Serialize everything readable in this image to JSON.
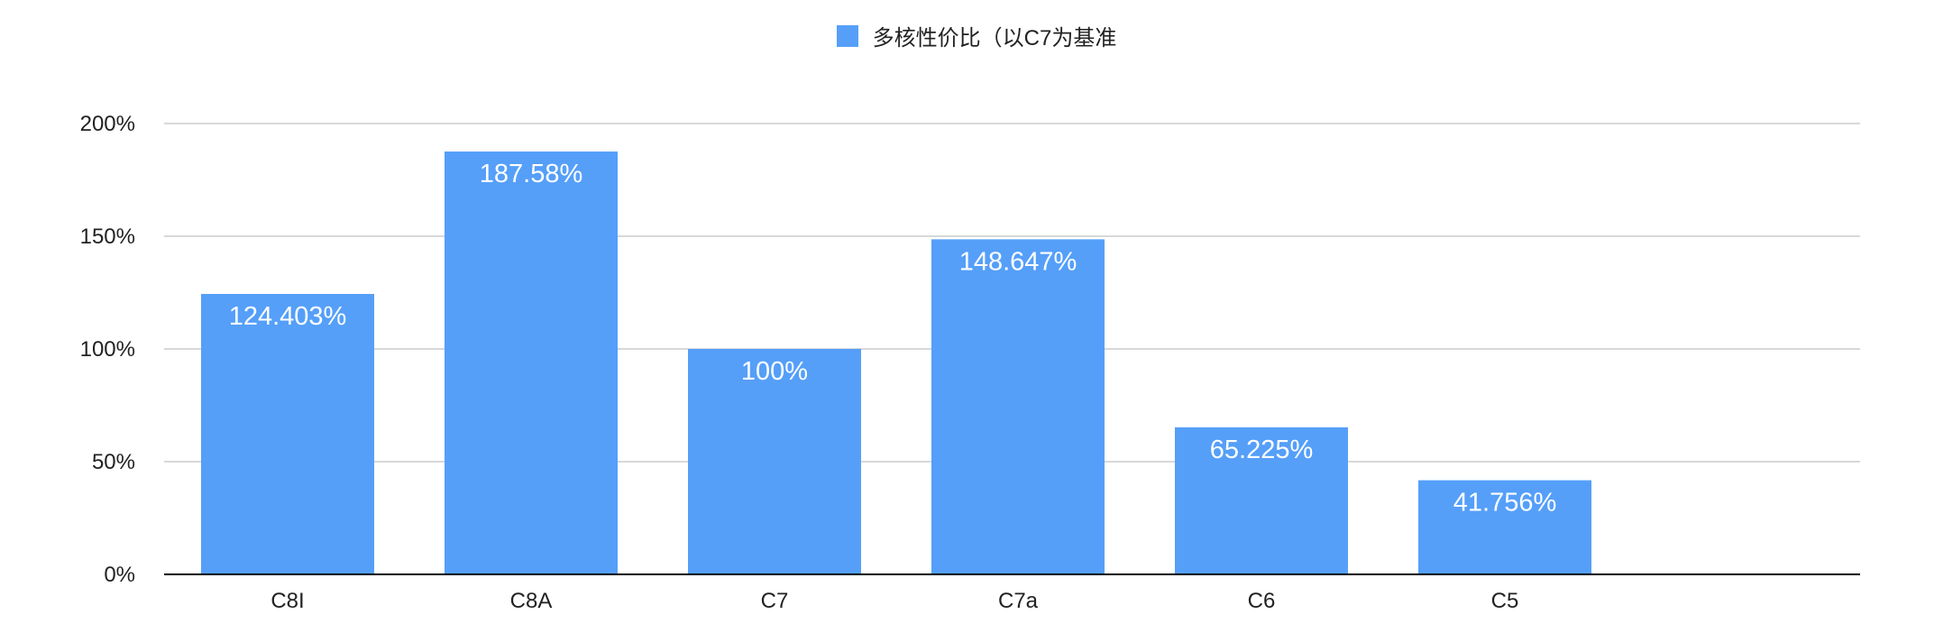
{
  "chart_data": {
    "type": "bar",
    "categories": [
      "C8I",
      "C8A",
      "C7",
      "C7a",
      "C6",
      "C5"
    ],
    "series": [
      {
        "name": "多核性价比（以C7为基准",
        "values": [
          124.403,
          187.58,
          100,
          148.647,
          65.225,
          41.756
        ],
        "data_labels": [
          "124.403%",
          "187.58%",
          "100%",
          "148.647%",
          "65.225%",
          "41.756%"
        ]
      }
    ],
    "ylim": [
      0,
      200
    ],
    "yticks": [
      0,
      50,
      100,
      150,
      200
    ],
    "ytick_labels": [
      "0%",
      "50%",
      "100%",
      "150%",
      "200%"
    ],
    "grid": true,
    "legend": "top-center",
    "colors": {
      "bar": "#559ff9",
      "grid": "#cccccc",
      "axis": "#000000",
      "label": "#222222",
      "data_label": "#ffffff"
    }
  }
}
